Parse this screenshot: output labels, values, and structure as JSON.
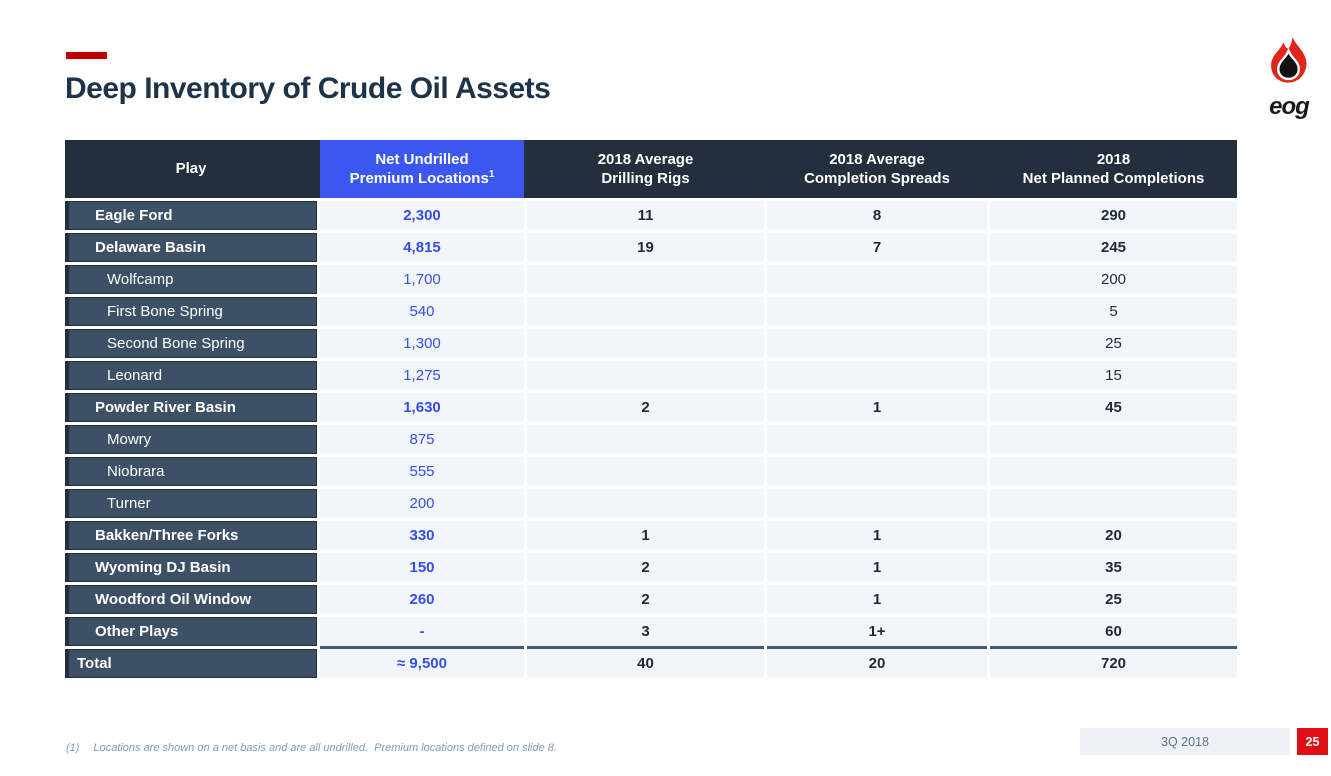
{
  "slide": {
    "title": "Deep Inventory of Crude Oil Assets",
    "logo_word": "eog",
    "footnote": {
      "marker": "(1)",
      "text": "Locations are shown on a net basis and are all undrilled.  Premium locations defined on slide 8."
    },
    "footer": {
      "quarter": "3Q 2018",
      "page_number": "25"
    }
  },
  "colors": {
    "accent_red": "#c00000",
    "page_box_red": "#e00e15",
    "header_navy": "#232f3d",
    "premium_header_blue": "#3c57ef",
    "value_blue": "#3450e2",
    "row_label_slate": "#3d5066",
    "data_cell_bg": "#f2f6fa",
    "title_navy": "#1d3349"
  },
  "table": {
    "columns": [
      {
        "label": "Play"
      },
      {
        "line1": "Net Undrilled",
        "line2": "Premium Locations",
        "sup": "1"
      },
      {
        "line1": "2018 Average",
        "line2": "Drilling Rigs"
      },
      {
        "line1": "2018 Average",
        "line2": "Completion Spreads"
      },
      {
        "line1": "2018",
        "line2": "Net Planned Completions"
      }
    ],
    "rows": [
      {
        "play": "Eagle Ford",
        "level": "main",
        "premium": "2,300",
        "rigs": "11",
        "spreads": "8",
        "completions": "290"
      },
      {
        "play": "Delaware Basin",
        "level": "main",
        "premium": "4,815",
        "rigs": "19",
        "spreads": "7",
        "completions": "245"
      },
      {
        "play": "Wolfcamp",
        "level": "sub",
        "premium": "1,700",
        "rigs": "",
        "spreads": "",
        "completions": "200"
      },
      {
        "play": "First Bone Spring",
        "level": "sub",
        "premium": "540",
        "rigs": "",
        "spreads": "",
        "completions": "5"
      },
      {
        "play": "Second Bone Spring",
        "level": "sub",
        "premium": "1,300",
        "rigs": "",
        "spreads": "",
        "completions": "25"
      },
      {
        "play": "Leonard",
        "level": "sub",
        "premium": "1,275",
        "rigs": "",
        "spreads": "",
        "completions": "15"
      },
      {
        "play": "Powder River Basin",
        "level": "main",
        "premium": "1,630",
        "rigs": "2",
        "spreads": "1",
        "completions": "45"
      },
      {
        "play": "Mowry",
        "level": "sub",
        "premium": "875",
        "rigs": "",
        "spreads": "",
        "completions": ""
      },
      {
        "play": "Niobrara",
        "level": "sub",
        "premium": "555",
        "rigs": "",
        "spreads": "",
        "completions": ""
      },
      {
        "play": "Turner",
        "level": "sub",
        "premium": "200",
        "rigs": "",
        "spreads": "",
        "completions": ""
      },
      {
        "play": "Bakken/Three Forks",
        "level": "main",
        "premium": "330",
        "rigs": "1",
        "spreads": "1",
        "completions": "20"
      },
      {
        "play": "Wyoming DJ Basin",
        "level": "main",
        "premium": "150",
        "rigs": "2",
        "spreads": "1",
        "completions": "35"
      },
      {
        "play": "Woodford Oil Window",
        "level": "main",
        "premium": "260",
        "rigs": "2",
        "spreads": "1",
        "completions": "25"
      },
      {
        "play": "Other Plays",
        "level": "main",
        "premium": "-",
        "rigs": "3",
        "spreads": "1+",
        "completions": "60"
      },
      {
        "play": "Total",
        "level": "total",
        "premium": "≈ 9,500",
        "rigs": "40",
        "spreads": "20",
        "completions": "720"
      }
    ]
  }
}
